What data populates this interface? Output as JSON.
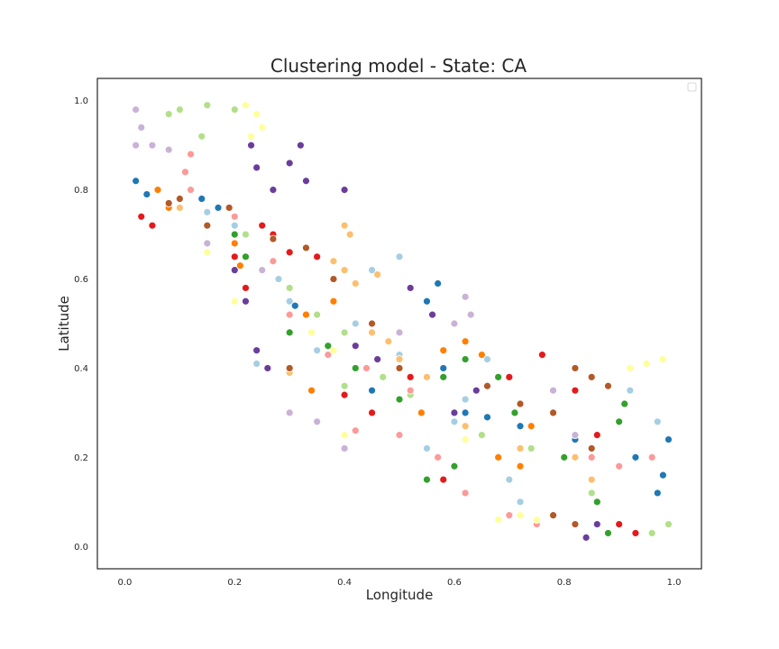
{
  "chart_data": {
    "type": "scatter",
    "title": "Clustering model - State: CA",
    "xlabel": "Longitude",
    "ylabel": "Latitude",
    "xlim": [
      -0.05,
      1.05
    ],
    "ylim": [
      -0.05,
      1.05
    ],
    "xticks": [
      "0.0",
      "0.2",
      "0.4",
      "0.6",
      "0.8",
      "1.0"
    ],
    "yticks": [
      "0.0",
      "0.2",
      "0.4",
      "0.6",
      "0.8",
      "1.0"
    ],
    "xtick_values": [
      0.0,
      0.2,
      0.4,
      0.6,
      0.8,
      1.0
    ],
    "ytick_values": [
      0.0,
      0.2,
      0.4,
      0.6,
      0.8,
      1.0
    ],
    "grid": false,
    "legend": {
      "placement": "top-right",
      "entries": []
    },
    "palette": [
      "#a6cee3",
      "#1f78b4",
      "#b2df8a",
      "#33a02c",
      "#fb9a99",
      "#e31a1c",
      "#fdbf6f",
      "#ff7f00",
      "#cab2d6",
      "#6a3d9a",
      "#ffff99",
      "#b15928"
    ],
    "series": [
      {
        "color": "#a6cee3",
        "points": [
          [
            0.15,
            0.75
          ],
          [
            0.2,
            0.72
          ],
          [
            0.28,
            0.6
          ],
          [
            0.3,
            0.55
          ],
          [
            0.42,
            0.5
          ],
          [
            0.5,
            0.43
          ],
          [
            0.55,
            0.38
          ],
          [
            0.62,
            0.33
          ],
          [
            0.55,
            0.22
          ],
          [
            0.7,
            0.15
          ],
          [
            0.72,
            0.1
          ],
          [
            0.92,
            0.35
          ],
          [
            0.97,
            0.28
          ],
          [
            0.45,
            0.62
          ],
          [
            0.5,
            0.65
          ],
          [
            0.35,
            0.44
          ],
          [
            0.6,
            0.28
          ],
          [
            0.66,
            0.42
          ],
          [
            0.24,
            0.41
          ]
        ]
      },
      {
        "color": "#1f78b4",
        "points": [
          [
            0.02,
            0.82
          ],
          [
            0.04,
            0.79
          ],
          [
            0.14,
            0.78
          ],
          [
            0.17,
            0.76
          ],
          [
            0.31,
            0.54
          ],
          [
            0.55,
            0.55
          ],
          [
            0.57,
            0.59
          ],
          [
            0.62,
            0.3
          ],
          [
            0.66,
            0.29
          ],
          [
            0.72,
            0.27
          ],
          [
            0.96,
            0.2
          ],
          [
            0.98,
            0.16
          ],
          [
            0.97,
            0.12
          ],
          [
            0.58,
            0.4
          ],
          [
            0.45,
            0.35
          ],
          [
            0.93,
            0.2
          ],
          [
            0.99,
            0.24
          ],
          [
            0.82,
            0.24
          ]
        ]
      },
      {
        "color": "#b2df8a",
        "points": [
          [
            0.1,
            0.98
          ],
          [
            0.15,
            0.99
          ],
          [
            0.2,
            0.98
          ],
          [
            0.08,
            0.97
          ],
          [
            0.22,
            0.7
          ],
          [
            0.3,
            0.58
          ],
          [
            0.35,
            0.52
          ],
          [
            0.4,
            0.48
          ],
          [
            0.47,
            0.38
          ],
          [
            0.52,
            0.34
          ],
          [
            0.6,
            0.3
          ],
          [
            0.65,
            0.25
          ],
          [
            0.74,
            0.22
          ],
          [
            0.85,
            0.12
          ],
          [
            0.99,
            0.05
          ],
          [
            0.96,
            0.03
          ],
          [
            0.14,
            0.92
          ],
          [
            0.4,
            0.36
          ]
        ]
      },
      {
        "color": "#33a02c",
        "points": [
          [
            0.2,
            0.7
          ],
          [
            0.22,
            0.65
          ],
          [
            0.3,
            0.48
          ],
          [
            0.37,
            0.45
          ],
          [
            0.42,
            0.4
          ],
          [
            0.5,
            0.33
          ],
          [
            0.58,
            0.38
          ],
          [
            0.62,
            0.42
          ],
          [
            0.68,
            0.38
          ],
          [
            0.71,
            0.3
          ],
          [
            0.8,
            0.2
          ],
          [
            0.86,
            0.1
          ],
          [
            0.88,
            0.03
          ],
          [
            0.9,
            0.28
          ],
          [
            0.91,
            0.32
          ],
          [
            0.6,
            0.18
          ],
          [
            0.55,
            0.15
          ]
        ]
      },
      {
        "color": "#fb9a99",
        "points": [
          [
            0.12,
            0.88
          ],
          [
            0.11,
            0.84
          ],
          [
            0.12,
            0.8
          ],
          [
            0.2,
            0.74
          ],
          [
            0.27,
            0.64
          ],
          [
            0.3,
            0.52
          ],
          [
            0.37,
            0.43
          ],
          [
            0.44,
            0.4
          ],
          [
            0.52,
            0.35
          ],
          [
            0.57,
            0.2
          ],
          [
            0.62,
            0.12
          ],
          [
            0.7,
            0.07
          ],
          [
            0.75,
            0.05
          ],
          [
            0.85,
            0.2
          ],
          [
            0.9,
            0.18
          ],
          [
            0.96,
            0.2
          ],
          [
            0.5,
            0.25
          ],
          [
            0.35,
            0.28
          ],
          [
            0.42,
            0.26
          ]
        ]
      },
      {
        "color": "#e31a1c",
        "points": [
          [
            0.03,
            0.74
          ],
          [
            0.05,
            0.72
          ],
          [
            0.2,
            0.65
          ],
          [
            0.22,
            0.58
          ],
          [
            0.25,
            0.72
          ],
          [
            0.27,
            0.7
          ],
          [
            0.3,
            0.66
          ],
          [
            0.35,
            0.65
          ],
          [
            0.4,
            0.34
          ],
          [
            0.45,
            0.3
          ],
          [
            0.52,
            0.38
          ],
          [
            0.58,
            0.15
          ],
          [
            0.7,
            0.38
          ],
          [
            0.76,
            0.43
          ],
          [
            0.82,
            0.35
          ],
          [
            0.86,
            0.25
          ],
          [
            0.9,
            0.05
          ],
          [
            0.93,
            0.03
          ]
        ]
      },
      {
        "color": "#fdbf6f",
        "points": [
          [
            0.1,
            0.76
          ],
          [
            0.38,
            0.64
          ],
          [
            0.4,
            0.62
          ],
          [
            0.42,
            0.59
          ],
          [
            0.4,
            0.72
          ],
          [
            0.45,
            0.48
          ],
          [
            0.5,
            0.42
          ],
          [
            0.55,
            0.38
          ],
          [
            0.48,
            0.46
          ],
          [
            0.62,
            0.27
          ],
          [
            0.72,
            0.22
          ],
          [
            0.82,
            0.2
          ],
          [
            0.85,
            0.15
          ],
          [
            0.3,
            0.39
          ],
          [
            0.41,
            0.7
          ],
          [
            0.46,
            0.61
          ]
        ]
      },
      {
        "color": "#ff7f00",
        "points": [
          [
            0.06,
            0.8
          ],
          [
            0.08,
            0.76
          ],
          [
            0.2,
            0.68
          ],
          [
            0.21,
            0.63
          ],
          [
            0.33,
            0.52
          ],
          [
            0.38,
            0.55
          ],
          [
            0.45,
            0.5
          ],
          [
            0.58,
            0.44
          ],
          [
            0.62,
            0.46
          ],
          [
            0.65,
            0.43
          ],
          [
            0.68,
            0.2
          ],
          [
            0.72,
            0.18
          ],
          [
            0.74,
            0.27
          ],
          [
            0.54,
            0.3
          ],
          [
            0.34,
            0.35
          ]
        ]
      },
      {
        "color": "#cab2d6",
        "points": [
          [
            0.02,
            0.98
          ],
          [
            0.03,
            0.94
          ],
          [
            0.02,
            0.9
          ],
          [
            0.05,
            0.9
          ],
          [
            0.08,
            0.89
          ],
          [
            0.15,
            0.68
          ],
          [
            0.25,
            0.62
          ],
          [
            0.3,
            0.3
          ],
          [
            0.35,
            0.28
          ],
          [
            0.4,
            0.22
          ],
          [
            0.62,
            0.56
          ],
          [
            0.63,
            0.52
          ],
          [
            0.78,
            0.35
          ],
          [
            0.82,
            0.25
          ],
          [
            0.6,
            0.5
          ],
          [
            0.5,
            0.48
          ]
        ]
      },
      {
        "color": "#6a3d9a",
        "points": [
          [
            0.23,
            0.9
          ],
          [
            0.24,
            0.85
          ],
          [
            0.27,
            0.8
          ],
          [
            0.3,
            0.86
          ],
          [
            0.32,
            0.9
          ],
          [
            0.2,
            0.62
          ],
          [
            0.22,
            0.55
          ],
          [
            0.24,
            0.44
          ],
          [
            0.26,
            0.4
          ],
          [
            0.42,
            0.45
          ],
          [
            0.46,
            0.42
          ],
          [
            0.52,
            0.58
          ],
          [
            0.56,
            0.52
          ],
          [
            0.6,
            0.3
          ],
          [
            0.64,
            0.35
          ],
          [
            0.84,
            0.02
          ],
          [
            0.86,
            0.05
          ],
          [
            0.33,
            0.82
          ],
          [
            0.4,
            0.8
          ]
        ]
      },
      {
        "color": "#ffff99",
        "points": [
          [
            0.22,
            0.99
          ],
          [
            0.24,
            0.97
          ],
          [
            0.25,
            0.94
          ],
          [
            0.23,
            0.92
          ],
          [
            0.15,
            0.66
          ],
          [
            0.2,
            0.55
          ],
          [
            0.34,
            0.48
          ],
          [
            0.38,
            0.44
          ],
          [
            0.68,
            0.06
          ],
          [
            0.72,
            0.07
          ],
          [
            0.75,
            0.06
          ],
          [
            0.92,
            0.4
          ],
          [
            0.95,
            0.41
          ],
          [
            0.98,
            0.42
          ],
          [
            0.4,
            0.25
          ],
          [
            0.62,
            0.24
          ]
        ]
      },
      {
        "color": "#b15928",
        "points": [
          [
            0.08,
            0.77
          ],
          [
            0.1,
            0.78
          ],
          [
            0.15,
            0.72
          ],
          [
            0.19,
            0.76
          ],
          [
            0.27,
            0.69
          ],
          [
            0.33,
            0.67
          ],
          [
            0.38,
            0.6
          ],
          [
            0.45,
            0.5
          ],
          [
            0.5,
            0.4
          ],
          [
            0.66,
            0.36
          ],
          [
            0.72,
            0.32
          ],
          [
            0.78,
            0.3
          ],
          [
            0.82,
            0.4
          ],
          [
            0.85,
            0.38
          ],
          [
            0.88,
            0.36
          ],
          [
            0.85,
            0.22
          ],
          [
            0.78,
            0.07
          ],
          [
            0.82,
            0.05
          ],
          [
            0.3,
            0.4
          ]
        ]
      }
    ]
  }
}
